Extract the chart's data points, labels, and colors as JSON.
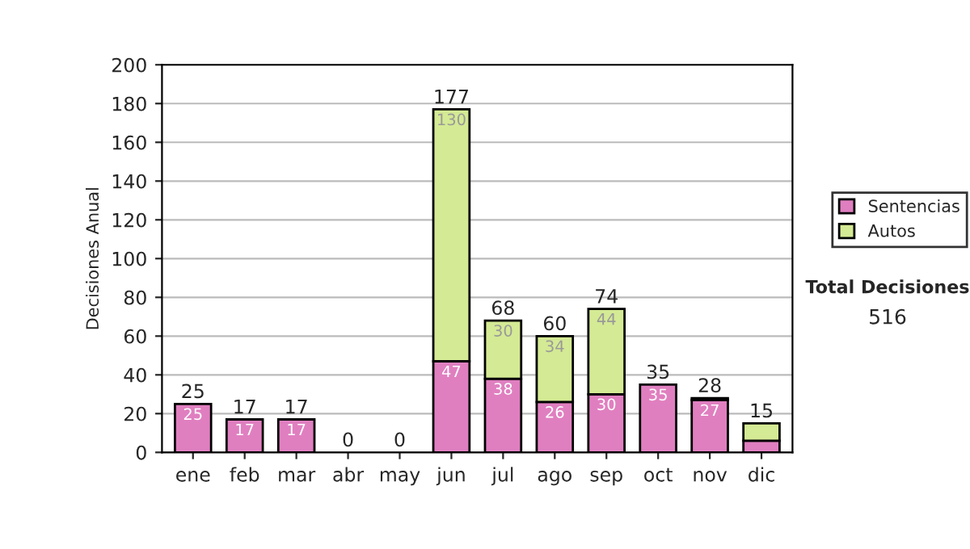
{
  "chart_data": {
    "type": "bar",
    "ylabel": "Decisiones Anual",
    "stacked": true,
    "categories": [
      "ene",
      "feb",
      "mar",
      "abr",
      "may",
      "jun",
      "jul",
      "ago",
      "sep",
      "oct",
      "nov",
      "dic"
    ],
    "series": [
      {
        "name": "Sentencias",
        "color": "#e07fc0",
        "values": [
          25,
          17,
          17,
          0,
          0,
          47,
          38,
          26,
          30,
          35,
          27,
          6
        ],
        "value_labels": [
          "25",
          "17",
          "17",
          null,
          null,
          "47",
          "38",
          "26",
          "30",
          "35",
          "27",
          null
        ]
      },
      {
        "name": "Autos",
        "color": "#d4ea94",
        "values": [
          0,
          0,
          0,
          0,
          0,
          130,
          30,
          34,
          44,
          0,
          1,
          9
        ],
        "value_labels": [
          null,
          null,
          null,
          null,
          null,
          "130",
          "30",
          "34",
          "44",
          null,
          null,
          null
        ]
      }
    ],
    "totals": [
      "25",
      "17",
      "17",
      "0",
      "0",
      "177",
      "68",
      "60",
      "74",
      "35",
      "28",
      "15"
    ],
    "ylim": [
      0,
      200
    ],
    "yticks": [
      0,
      20,
      40,
      60,
      80,
      100,
      120,
      140,
      160,
      180,
      200
    ],
    "grid": "y",
    "legend": "right",
    "annotations": [
      "Total Decisiones",
      "516"
    ]
  }
}
